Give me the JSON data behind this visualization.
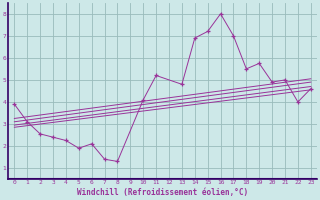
{
  "xlabel": "Windchill (Refroidissement éolien,°C)",
  "bg_color": "#cde8e8",
  "line_color": "#993399",
  "axis_bar_color": "#330066",
  "grid_color": "#99bbbb",
  "xlim": [
    -0.5,
    23.5
  ],
  "ylim": [
    0.5,
    8.5
  ],
  "xticks": [
    0,
    1,
    2,
    3,
    4,
    5,
    6,
    7,
    8,
    9,
    10,
    11,
    12,
    13,
    14,
    15,
    16,
    17,
    18,
    19,
    20,
    21,
    22,
    23
  ],
  "yticks": [
    1,
    2,
    3,
    4,
    5,
    6,
    7,
    8
  ],
  "scatter_x": [
    0,
    1,
    2,
    3,
    4,
    5,
    6,
    7,
    8,
    10,
    11,
    13,
    14,
    15,
    16,
    17,
    18,
    19,
    20,
    21,
    22,
    23
  ],
  "scatter_y": [
    3.9,
    3.1,
    2.55,
    2.4,
    2.25,
    1.9,
    2.1,
    1.4,
    1.3,
    4.1,
    5.2,
    4.8,
    6.9,
    7.2,
    8.0,
    7.0,
    5.5,
    5.75,
    4.9,
    5.0,
    4.0,
    4.6
  ],
  "line1_x": [
    0,
    23
  ],
  "line1_y": [
    2.85,
    4.55
  ],
  "line2_x": [
    0,
    23
  ],
  "line2_y": [
    2.95,
    4.7
  ],
  "line3_x": [
    0,
    23
  ],
  "line3_y": [
    3.1,
    4.9
  ],
  "line4_x": [
    0,
    23
  ],
  "line4_y": [
    3.25,
    5.05
  ]
}
